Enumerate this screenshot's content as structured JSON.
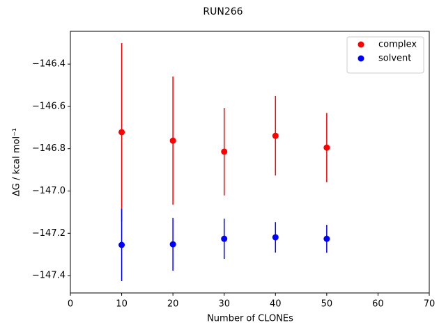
{
  "chart_data": {
    "type": "scatter",
    "title": "RUN266",
    "xlabel": "Number of CLONEs",
    "ylabel": "ΔG / kcal mol⁻¹",
    "xlim": [
      0,
      70
    ],
    "xticks": [
      0,
      10,
      20,
      30,
      40,
      50,
      60,
      70
    ],
    "ylim": [
      -147.482,
      -146.245
    ],
    "yticks": [
      {
        "value": -146.4,
        "label": "−146.4"
      },
      {
        "value": -146.6,
        "label": "−146.6"
      },
      {
        "value": -146.8,
        "label": "−146.8"
      },
      {
        "value": -147.0,
        "label": "−147.0"
      },
      {
        "value": -147.2,
        "label": "−147.2"
      },
      {
        "value": -147.4,
        "label": "−147.4"
      }
    ],
    "legend": "upper right",
    "grid": false,
    "series": [
      {
        "name": "complex",
        "color": "#ff0000",
        "x": [
          10,
          20,
          30,
          40,
          50
        ],
        "values": [
          -146.722,
          -146.762,
          -146.814,
          -146.739,
          -146.795
        ],
        "errors": [
          0.421,
          0.303,
          0.207,
          0.188,
          0.164
        ]
      },
      {
        "name": "solvent",
        "color": "#0000ff",
        "x": [
          10,
          20,
          30,
          40,
          50
        ],
        "values": [
          -147.255,
          -147.252,
          -147.226,
          -147.219,
          -147.226
        ],
        "errors": [
          0.171,
          0.125,
          0.095,
          0.072,
          0.066
        ]
      }
    ]
  }
}
